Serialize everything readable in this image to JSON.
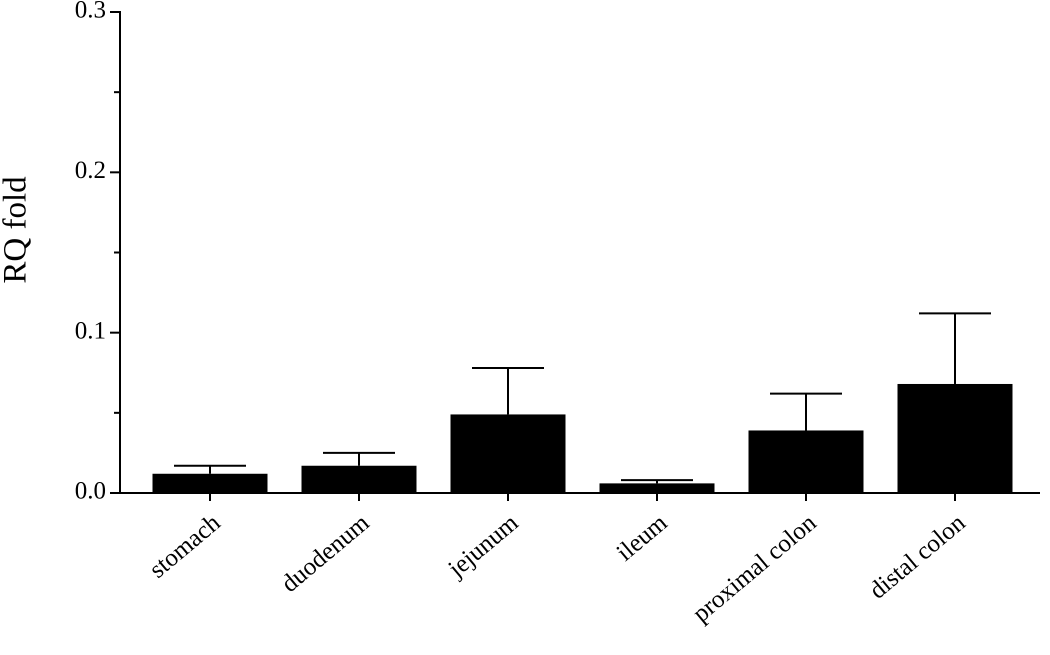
{
  "chart_data": {
    "type": "bar",
    "y_label": "RQ fold",
    "categories": [
      "stomach",
      "duodenum",
      "jejunum",
      "ileum",
      "proximal colon",
      "distal colon"
    ],
    "values": [
      0.012,
      0.017,
      0.049,
      0.006,
      0.039,
      0.068
    ],
    "errors": [
      0.005,
      0.008,
      0.029,
      0.002,
      0.023,
      0.044
    ],
    "color": "#000000",
    "ylim": [
      0,
      0.3
    ],
    "yticks": [
      {
        "value": 0,
        "label": "0.0"
      },
      0.1,
      0.2,
      0.3
    ],
    "y_minor_ticks": [
      0.05,
      0.15,
      0.25
    ],
    "grid": false
  }
}
